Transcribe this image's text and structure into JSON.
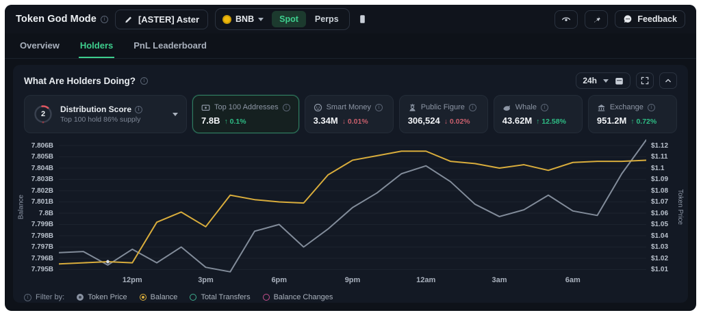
{
  "header": {
    "title": "Token God Mode",
    "token": "[ASTER] Aster",
    "chain": "BNB",
    "market_tabs": [
      "Spot",
      "Perps"
    ],
    "active_market_tab": "Spot",
    "feedback_label": "Feedback"
  },
  "nav_tabs": [
    {
      "label": "Overview"
    },
    {
      "label": "Holders"
    },
    {
      "label": "PnL Leaderboard"
    }
  ],
  "active_nav_tab": "Holders",
  "panel": {
    "title": "What Are Holders Doing?",
    "timeframe": "24h"
  },
  "score_card": {
    "score": "2",
    "title": "Distribution Score",
    "subtitle": "Top 100 hold 86% supply"
  },
  "stat_cards": [
    {
      "label": "Top 100 Addresses",
      "value": "7.8B",
      "change_text": "↑ 0.1%",
      "dir": "up",
      "selected": true,
      "icon": "wallet"
    },
    {
      "label": "Smart Money",
      "value": "3.34M",
      "change_text": "↓ 0.01%",
      "dir": "down",
      "selected": false,
      "icon": "smart-money"
    },
    {
      "label": "Public Figure",
      "value": "306,524",
      "change_text": "↓ 0.02%",
      "dir": "down",
      "selected": false,
      "icon": "public-figure"
    },
    {
      "label": "Whale",
      "value": "43.62M",
      "change_text": "↑ 12.58%",
      "dir": "up",
      "selected": false,
      "icon": "whale"
    },
    {
      "label": "Exchange",
      "value": "951.2M",
      "change_text": "↑ 0.72%",
      "dir": "up",
      "selected": false,
      "icon": "bank"
    }
  ],
  "chart_data": {
    "type": "line",
    "left_axis": {
      "label": "Balance",
      "ticks": [
        "7.806B",
        "7.805B",
        "7.804B",
        "7.803B",
        "7.802B",
        "7.801B",
        "7.8B",
        "7.799B",
        "7.798B",
        "7.797B",
        "7.796B",
        "7.795B"
      ],
      "max": 7.806,
      "min": 7.795
    },
    "right_axis": {
      "label": "Token Price",
      "ticks": [
        "$1.12",
        "$1.11",
        "$1.1",
        "$1.09",
        "$1.08",
        "$1.07",
        "$1.06",
        "$1.05",
        "$1.04",
        "$1.03",
        "$1.02",
        "$1.01"
      ],
      "max": 1.12,
      "min": 1.01
    },
    "x_ticks": [
      {
        "label": "12pm",
        "i": 3
      },
      {
        "label": "3pm",
        "i": 6
      },
      {
        "label": "6pm",
        "i": 9
      },
      {
        "label": "9pm",
        "i": 12
      },
      {
        "label": "12am",
        "i": 15
      },
      {
        "label": "3am",
        "i": 18
      },
      {
        "label": "6am",
        "i": 21
      }
    ],
    "grid": true,
    "series": [
      {
        "name": "Token Price",
        "axis": "right",
        "color": "#828c9a",
        "values": [
          1.025,
          1.026,
          1.014,
          1.028,
          1.016,
          1.03,
          1.012,
          1.008,
          1.044,
          1.05,
          1.03,
          1.046,
          1.065,
          1.078,
          1.095,
          1.102,
          1.088,
          1.068,
          1.057,
          1.063,
          1.076,
          1.062,
          1.058,
          1.095,
          1.125
        ]
      },
      {
        "name": "Balance",
        "axis": "left",
        "color": "#d9ad3c",
        "values": [
          7.7955,
          7.7956,
          7.7957,
          7.7956,
          7.7992,
          7.8001,
          7.7988,
          7.8016,
          7.8012,
          7.801,
          7.8009,
          7.8034,
          7.8047,
          7.8051,
          7.8055,
          7.8055,
          7.8046,
          7.8044,
          7.804,
          7.8043,
          7.8038,
          7.8045,
          7.8046,
          7.8046,
          7.8047
        ]
      }
    ],
    "highlight_point": {
      "series": 1,
      "index": 2
    }
  },
  "legend": {
    "filter_label": "Filter by:",
    "items": [
      {
        "label": "Token Price",
        "color": "#8a93a3",
        "state": "solid"
      },
      {
        "label": "Balance",
        "color": "#d9ad3c",
        "state": "active"
      },
      {
        "label": "Total Transfers",
        "color": "#3fae8e",
        "state": "outline"
      },
      {
        "label": "Balance Changes",
        "color": "#c8508e",
        "state": "outline"
      }
    ]
  },
  "colors": {
    "accent_green": "#3ecf8e",
    "up": "#2ebd85",
    "down": "#c95f6c",
    "balance_line": "#d9ad3c",
    "price_line": "#828c9a"
  }
}
